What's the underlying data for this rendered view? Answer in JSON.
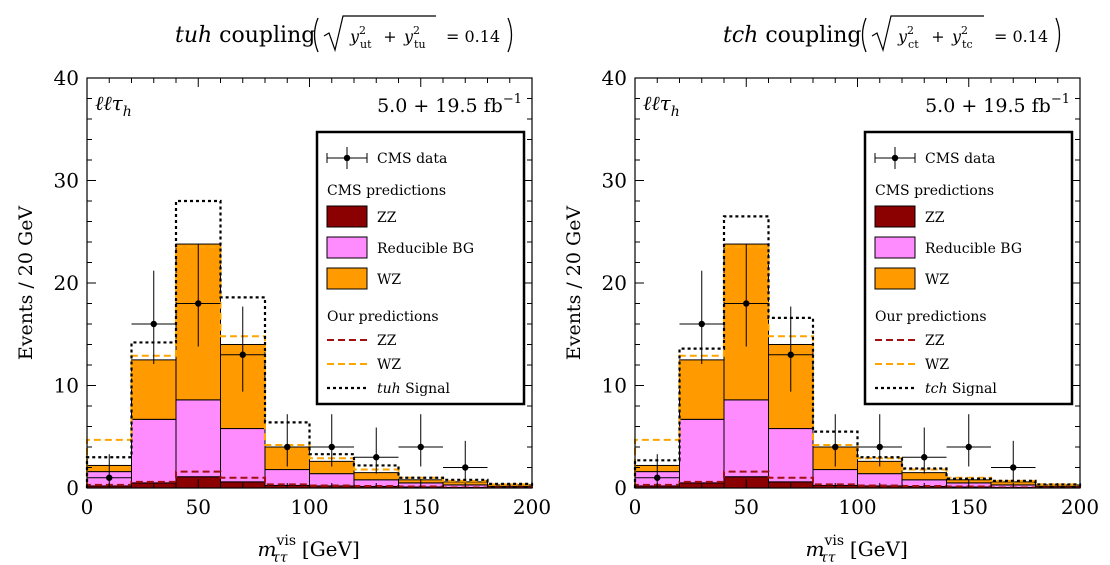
{
  "chart_data": [
    {
      "type": "bar",
      "title_italic": "tuh",
      "title_text": "coupling",
      "formula_y1": "y",
      "formula_s1": "ut",
      "formula_y2": "y",
      "formula_s2": "tu",
      "formula_value": "= 0.14",
      "channel": "ℓℓτ",
      "channel_sub": "h",
      "lumi": "5.0 + 19.5 fb",
      "lumi_exp": "−1",
      "xlabel_main": "m",
      "xlabel_sup": "vis",
      "xlabel_sub": "ττ",
      "xlabel_unit": "[GeV]",
      "ylabel": "Events / 20 GeV",
      "xlim": [
        0,
        200
      ],
      "ylim": [
        0,
        40
      ],
      "xticks": [
        "0",
        "50",
        "100",
        "150",
        "200"
      ],
      "yticks": [
        "0",
        "10",
        "20",
        "30",
        "40"
      ],
      "bin_edges": [
        0,
        20,
        40,
        60,
        80,
        100,
        120,
        140,
        160,
        180,
        200
      ],
      "stack": [
        {
          "name": "ZZ",
          "color": "#8b0000",
          "values": [
            0.2,
            0.5,
            1.1,
            0.6,
            0.25,
            0.2,
            0.15,
            0.1,
            0.05,
            0.05
          ]
        },
        {
          "name": "Reducible BG",
          "color": "#ff8cff",
          "values": [
            1.6,
            6.7,
            8.6,
            5.8,
            1.8,
            1.4,
            0.8,
            0.5,
            0.3,
            0.15
          ]
        },
        {
          "name": "WZ",
          "color": "#ff9a00",
          "values": [
            2.2,
            12.5,
            23.8,
            14.0,
            4.0,
            2.6,
            1.5,
            0.8,
            0.6,
            0.3
          ]
        }
      ],
      "our_zz": [
        0.3,
        0.6,
        1.6,
        1.0,
        0.35,
        0.25,
        0.2,
        0.15,
        0.05,
        0.05
      ],
      "our_wz": [
        4.7,
        12.9,
        23.5,
        14.8,
        4.2,
        2.9,
        1.8,
        1.0,
        0.7,
        0.35
      ],
      "signal": [
        3.0,
        14.2,
        28.0,
        18.6,
        6.4,
        3.3,
        2.2,
        1.0,
        0.8,
        0.4
      ],
      "data": {
        "x": [
          10,
          30,
          50,
          70,
          90,
          110,
          130,
          150,
          170
        ],
        "y": [
          1,
          16,
          18,
          13,
          4,
          4,
          3,
          4,
          2
        ],
        "err_up": [
          2.3,
          5.2,
          5.8,
          4.7,
          3.2,
          3.2,
          2.9,
          3.2,
          2.6
        ],
        "err_dn": [
          0.8,
          3.9,
          4.2,
          3.6,
          1.9,
          1.9,
          1.6,
          1.9,
          1.3
        ]
      },
      "legend": {
        "data": "CMS data",
        "cms_header": "CMS predictions",
        "zz": "ZZ",
        "red": "Reducible BG",
        "wz": "WZ",
        "our_header": "Our predictions",
        "our_zz": "ZZ",
        "our_wz": "WZ",
        "signal_italic": "tuh",
        "signal_text": "Signal"
      },
      "colors": {
        "our_zz": "#a01010",
        "our_wz": "#ffa500",
        "signal": "#000000"
      }
    },
    {
      "type": "bar",
      "title_italic": "tch",
      "title_text": "coupling",
      "formula_y1": "y",
      "formula_s1": "ct",
      "formula_y2": "y",
      "formula_s2": "tc",
      "formula_value": "= 0.14",
      "channel": "ℓℓτ",
      "channel_sub": "h",
      "lumi": "5.0 + 19.5 fb",
      "lumi_exp": "−1",
      "xlabel_main": "m",
      "xlabel_sup": "vis",
      "xlabel_sub": "ττ",
      "xlabel_unit": "[GeV]",
      "ylabel": "Events / 20 GeV",
      "xlim": [
        0,
        200
      ],
      "ylim": [
        0,
        40
      ],
      "xticks": [
        "0",
        "50",
        "100",
        "150",
        "200"
      ],
      "yticks": [
        "0",
        "10",
        "20",
        "30",
        "40"
      ],
      "bin_edges": [
        0,
        20,
        40,
        60,
        80,
        100,
        120,
        140,
        160,
        180,
        200
      ],
      "stack": [
        {
          "name": "ZZ",
          "color": "#8b0000",
          "values": [
            0.2,
            0.5,
            1.1,
            0.6,
            0.25,
            0.2,
            0.15,
            0.1,
            0.05,
            0.05
          ]
        },
        {
          "name": "Reducible BG",
          "color": "#ff8cff",
          "values": [
            1.6,
            6.7,
            8.6,
            5.8,
            1.8,
            1.4,
            0.8,
            0.5,
            0.3,
            0.15
          ]
        },
        {
          "name": "WZ",
          "color": "#ff9a00",
          "values": [
            2.2,
            12.5,
            23.8,
            14.0,
            4.0,
            2.6,
            1.5,
            0.8,
            0.6,
            0.3
          ]
        }
      ],
      "our_zz": [
        0.3,
        0.6,
        1.6,
        1.0,
        0.35,
        0.25,
        0.2,
        0.15,
        0.05,
        0.05
      ],
      "our_wz": [
        4.7,
        12.9,
        23.5,
        14.8,
        4.2,
        2.9,
        1.8,
        1.0,
        0.7,
        0.35
      ],
      "signal": [
        2.7,
        13.6,
        26.5,
        16.6,
        5.5,
        3.0,
        1.9,
        0.9,
        0.7,
        0.35
      ],
      "data": {
        "x": [
          10,
          30,
          50,
          70,
          90,
          110,
          130,
          150,
          170
        ],
        "y": [
          1,
          16,
          18,
          13,
          4,
          4,
          3,
          4,
          2
        ],
        "err_up": [
          2.3,
          5.2,
          5.8,
          4.7,
          3.2,
          3.2,
          2.9,
          3.2,
          2.6
        ],
        "err_dn": [
          0.8,
          3.9,
          4.2,
          3.6,
          1.9,
          1.9,
          1.6,
          1.9,
          1.3
        ]
      },
      "legend": {
        "data": "CMS data",
        "cms_header": "CMS predictions",
        "zz": "ZZ",
        "red": "Reducible BG",
        "wz": "WZ",
        "our_header": "Our predictions",
        "our_zz": "ZZ",
        "our_wz": "WZ",
        "signal_italic": "tch",
        "signal_text": "Signal"
      },
      "colors": {
        "our_zz": "#a01010",
        "our_wz": "#ffa500",
        "signal": "#000000"
      }
    }
  ]
}
